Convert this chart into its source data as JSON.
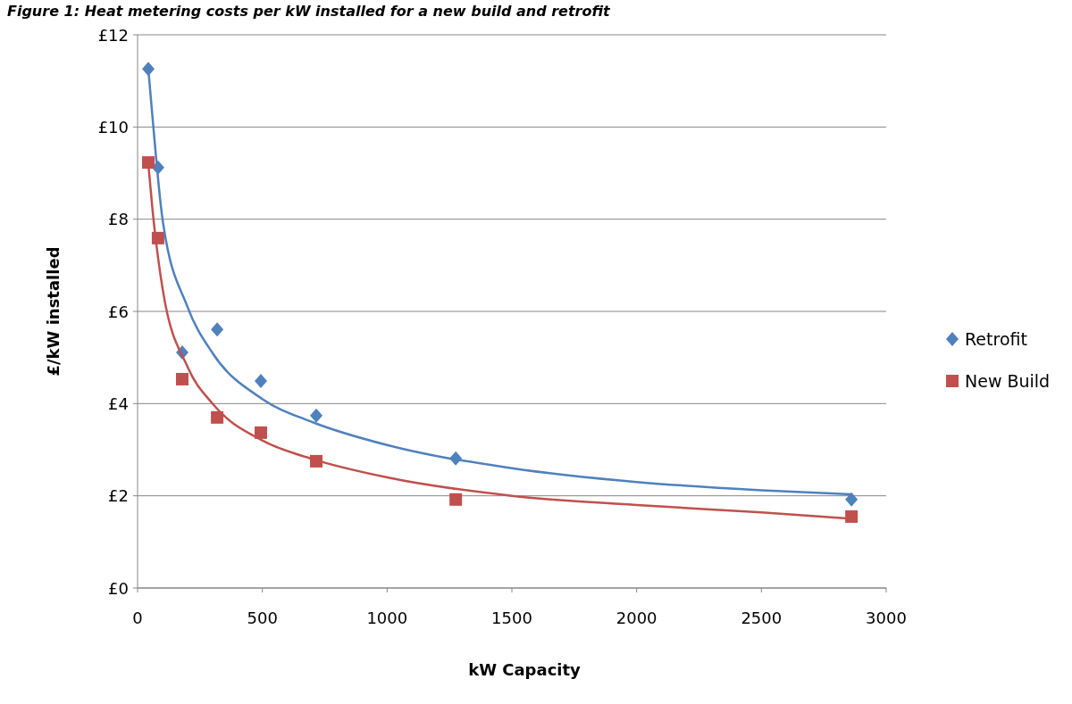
{
  "chart_data": {
    "type": "scatter",
    "title": "Figure 1: Heat metering costs per kW installed for a new build and retrofit",
    "xlabel": "kW Capacity",
    "ylabel": "£/kW installed",
    "xlim": [
      0,
      3000
    ],
    "xticks": [
      0,
      500,
      1000,
      1500,
      2000,
      2500,
      3000
    ],
    "ylim": [
      0,
      12
    ],
    "yticks": [
      {
        "value": 0,
        "label": "£0"
      },
      {
        "value": 2,
        "label": "£2"
      },
      {
        "value": 4,
        "label": "£4"
      },
      {
        "value": 6,
        "label": "£6"
      },
      {
        "value": 8,
        "label": "£8"
      },
      {
        "value": 10,
        "label": "£10"
      },
      {
        "value": 12,
        "label": "£12"
      }
    ],
    "grid": "y",
    "legend": "right",
    "series": [
      {
        "name": "Retrofit",
        "color": "#4f81bd",
        "marker": "diamond",
        "x": [
          43,
          82,
          179,
          319,
          494,
          716,
          1275,
          2861
        ],
        "values": [
          11.26,
          9.12,
          5.11,
          5.61,
          4.49,
          3.74,
          2.81,
          1.92
        ]
      },
      {
        "name": "New Build",
        "color": "#c0504d",
        "marker": "square",
        "x": [
          43,
          82,
          179,
          319,
          494,
          716,
          1275,
          2861
        ],
        "values": [
          9.23,
          7.59,
          4.53,
          3.7,
          3.37,
          2.75,
          1.92,
          1.55
        ]
      },
      {
        "type": "line",
        "color": "#4f81bd",
        "marker": "none",
        "x": [
          43,
          60,
          100,
          200,
          300,
          500,
          700,
          1000,
          1500,
          2000,
          2500,
          2861
        ],
        "values": [
          11.26,
          10.2,
          8.0,
          6.1,
          5.1,
          4.1,
          3.6,
          3.1,
          2.6,
          2.3,
          2.12,
          2.03
        ]
      },
      {
        "type": "line",
        "color": "#c0504d",
        "marker": "none",
        "x": [
          43,
          60,
          100,
          200,
          300,
          500,
          700,
          1000,
          1500,
          2000,
          2500,
          2861
        ],
        "values": [
          9.2,
          8.2,
          6.5,
          4.8,
          4.0,
          3.2,
          2.8,
          2.4,
          2.0,
          1.8,
          1.64,
          1.5
        ]
      }
    ]
  }
}
